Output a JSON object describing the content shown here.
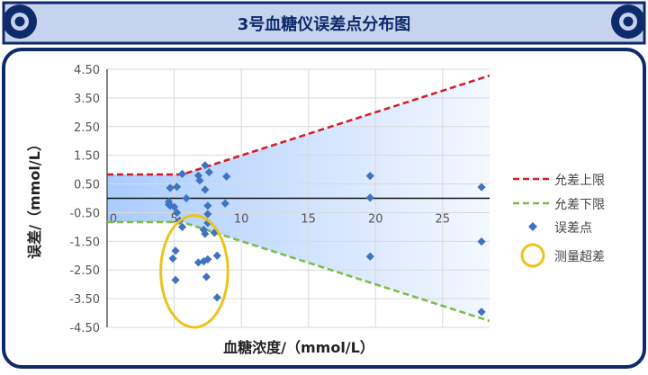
{
  "colors": {
    "navy": "#0e2a6a",
    "header_fill": "#c5d3ee",
    "upper_limit": "#d0202a",
    "lower_limit": "#7cbd44",
    "points": "#3f73c0",
    "highlight": "#ecc31a",
    "band_light": "#f4f8ff",
    "band_dark": "#a9ccff"
  },
  "chart_data": {
    "type": "scatter",
    "title": "3号血糖仪误差点分布图",
    "xlabel": "血糖浓度/（mmol/L）",
    "ylabel": "误差/（mmol/L）",
    "xlim": [
      0,
      28.5
    ],
    "ylim": [
      -4.5,
      4.5
    ],
    "x_ticks": [
      0,
      5,
      10,
      15,
      20,
      25
    ],
    "x_tick_labels": [
      "0",
      "5",
      "10",
      "15",
      "20",
      "25"
    ],
    "y_ticks": [
      4.5,
      3.5,
      2.5,
      1.5,
      0.5,
      -0.5,
      -1.5,
      -2.5,
      -3.5,
      -4.5
    ],
    "y_tick_labels": [
      "4.50",
      "3.50",
      "2.50",
      "1.50",
      "0.50",
      "-0.50",
      "-1.50",
      "-2.50",
      "-3.50",
      "-4.50"
    ],
    "grid": true,
    "legend_position": "right",
    "series": [
      {
        "name": "允差上限",
        "type": "line",
        "style": "dashed",
        "x": [
          0,
          5.6,
          28.5
        ],
        "y": [
          0.83,
          0.83,
          4.28
        ]
      },
      {
        "name": "允差下限",
        "type": "line",
        "style": "dashed",
        "x": [
          0,
          5.6,
          28.5
        ],
        "y": [
          -0.83,
          -0.83,
          -4.28
        ]
      },
      {
        "name": "误差点",
        "type": "scatter",
        "points": [
          [
            4.7,
            0.36
          ],
          [
            5.2,
            0.4
          ],
          [
            4.6,
            -0.12
          ],
          [
            4.6,
            -0.22
          ],
          [
            4.7,
            -0.26
          ],
          [
            5.0,
            -0.3
          ],
          [
            5.2,
            -0.5
          ],
          [
            5.6,
            0.85
          ],
          [
            5.4,
            -0.78
          ],
          [
            5.6,
            -1.0
          ],
          [
            5.9,
            0.0
          ],
          [
            6.8,
            0.79
          ],
          [
            6.9,
            0.62
          ],
          [
            7.3,
            1.15
          ],
          [
            7.6,
            0.91
          ],
          [
            7.3,
            0.3
          ],
          [
            7.5,
            -0.26
          ],
          [
            7.5,
            -0.55
          ],
          [
            7.5,
            -0.86
          ],
          [
            7.2,
            -1.1
          ],
          [
            7.3,
            -1.24
          ],
          [
            8.0,
            -1.2
          ],
          [
            8.9,
            0.76
          ],
          [
            8.8,
            -0.18
          ],
          [
            19.6,
            0.78
          ],
          [
            19.6,
            0.02
          ],
          [
            19.6,
            -2.03
          ],
          [
            27.9,
            0.39
          ],
          [
            27.9,
            -1.51
          ],
          [
            27.9,
            -3.96
          ],
          [
            5.1,
            -1.83
          ],
          [
            4.9,
            -2.1
          ],
          [
            5.1,
            -2.85
          ],
          [
            6.8,
            -2.24
          ],
          [
            7.2,
            -2.2
          ],
          [
            7.5,
            -2.13
          ],
          [
            7.4,
            -2.74
          ],
          [
            8.2,
            -2.0
          ],
          [
            8.2,
            -3.46
          ]
        ]
      }
    ],
    "legend": [
      "允差上限",
      "允差下限",
      "误差点",
      "测量超差"
    ],
    "annotations": [
      {
        "name": "测量超差",
        "type": "circle",
        "center": [
          6.5,
          -2.55
        ],
        "radius_x": 2.5,
        "radius_y": 1.95
      }
    ]
  }
}
